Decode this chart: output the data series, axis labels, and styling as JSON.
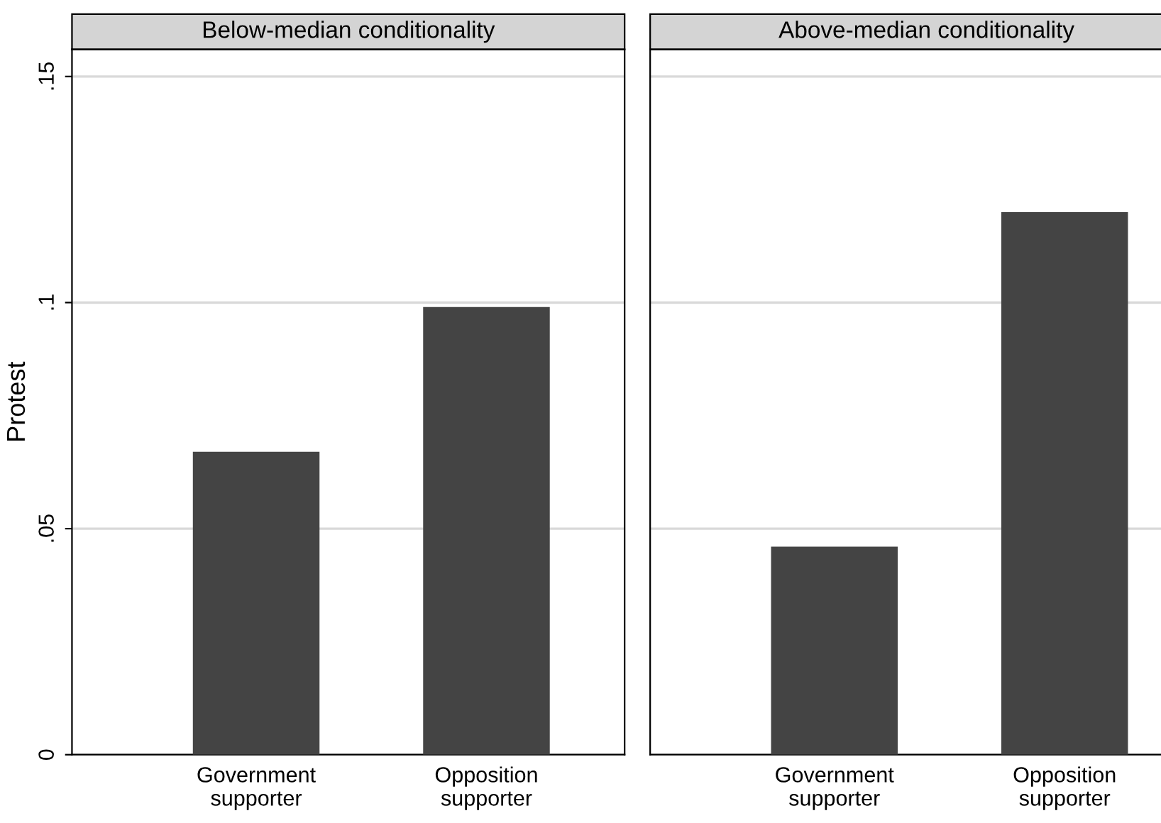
{
  "chart_data": [
    {
      "type": "bar",
      "title": "Below-median conditionality",
      "ylabel": "Protest",
      "categories": [
        "Government\nsupporter",
        "Opposition\nsupporter"
      ],
      "values": [
        0.067,
        0.099
      ],
      "color": "#444444",
      "ylim": [
        0,
        0.156
      ],
      "yticks": [
        {
          "value": 0,
          "label": "0"
        },
        {
          "value": 0.05,
          "label": ".05"
        },
        {
          "value": 0.1,
          "label": ".1"
        },
        {
          "value": 0.15,
          "label": ".15"
        }
      ],
      "grid": "y"
    },
    {
      "type": "bar",
      "title": "Above-median conditionality",
      "categories": [
        "Government\nsupporter",
        "Opposition\nsupporter"
      ],
      "values": [
        0.046,
        0.12
      ],
      "color": "#444444",
      "ylim": [
        0,
        0.156
      ],
      "grid": "y",
      "tick_labels": "x"
    }
  ]
}
